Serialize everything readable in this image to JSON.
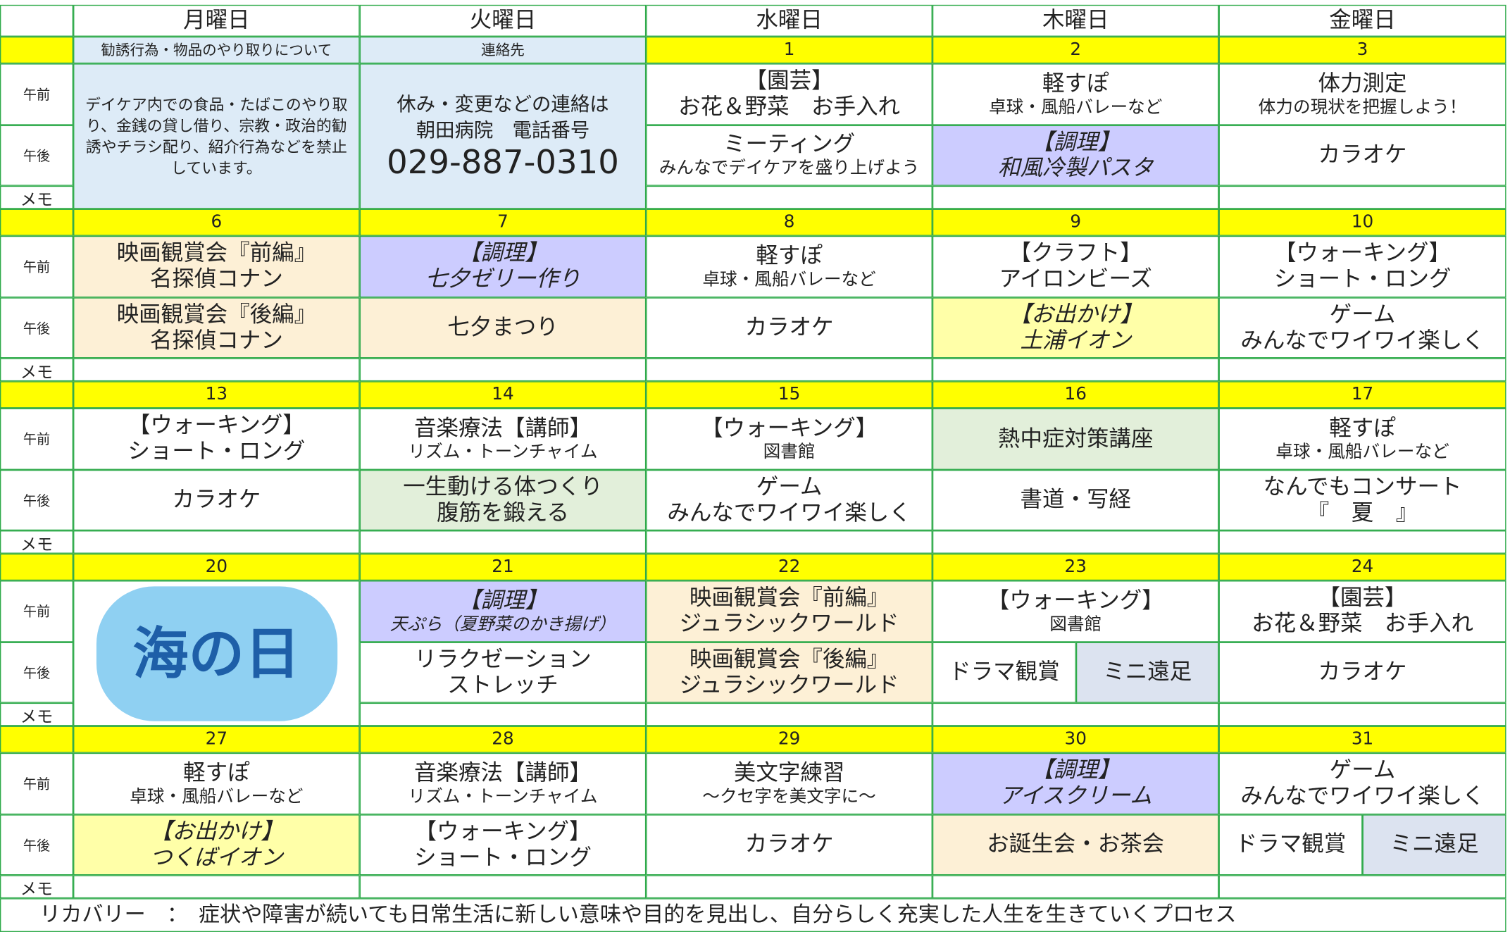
{
  "header": {
    "days": [
      "月曜日",
      "火曜日",
      "水曜日",
      "木曜日",
      "金曜日"
    ]
  },
  "row_labels": {
    "am": "午前",
    "pm": "午後",
    "memo": "メモ"
  },
  "notice": {
    "title": "勧誘行為・物品のやり取りについて",
    "text": "デイケア内での食品・たばこのやり取り、金銭の貸し借り、宗教・政治的勧誘やチラシ配り、紹介行為などを禁止しています。"
  },
  "contact": {
    "title": "連絡先",
    "lines": [
      "休み・変更などの連絡は",
      "朝田病院　電話番号",
      "029-887-0310"
    ]
  },
  "weeks": [
    {
      "dates": [
        null,
        null,
        1,
        2,
        3
      ],
      "am": [
        null,
        null,
        {
          "main": [
            "【園芸】",
            "お花＆野菜　お手入れ"
          ]
        },
        {
          "main": [
            "軽すぽ"
          ],
          "sub": "卓球・風船バレーなど"
        },
        {
          "main": [
            "体力測定"
          ],
          "sub": "体力の現状を把握しよう！"
        }
      ],
      "pm": [
        null,
        null,
        {
          "main": [
            "ミーティング"
          ],
          "sub": "みんなでデイケアを盛り上げよう"
        },
        {
          "main": [
            "【調理】",
            "和風冷製パスタ"
          ],
          "style": "cook"
        },
        {
          "main": [
            "カラオケ"
          ]
        }
      ]
    },
    {
      "dates": [
        6,
        7,
        8,
        9,
        10
      ],
      "am": [
        {
          "main": [
            "映画観賞会『前編』",
            "名探偵コナン"
          ],
          "style": "movie"
        },
        {
          "main": [
            "【調理】",
            "七夕ゼリー作り"
          ],
          "style": "cook"
        },
        {
          "main": [
            "軽すぽ"
          ],
          "sub": "卓球・風船バレーなど"
        },
        {
          "main": [
            "【クラフト】",
            "アイロンビーズ"
          ]
        },
        {
          "main": [
            "【ウォーキング】",
            "ショート・ロング"
          ]
        }
      ],
      "pm": [
        {
          "main": [
            "映画観賞会『後編』",
            "名探偵コナン"
          ],
          "style": "movie"
        },
        {
          "main": [
            "七夕まつり"
          ],
          "style": "movie"
        },
        {
          "main": [
            "カラオケ"
          ]
        },
        {
          "main": [
            "【お出かけ】",
            "土浦イオン"
          ],
          "style": "outing"
        },
        {
          "main": [
            "ゲーム",
            "みんなでワイワイ楽しく"
          ]
        }
      ]
    },
    {
      "dates": [
        13,
        14,
        15,
        16,
        17
      ],
      "am": [
        {
          "main": [
            "【ウォーキング】",
            "ショート・ロング"
          ]
        },
        {
          "main": [
            "音楽療法【講師】"
          ],
          "sub": "リズム・トーンチャイム"
        },
        {
          "main": [
            "【ウォーキング】"
          ],
          "sub": "図書館"
        },
        {
          "main": [
            "熱中症対策講座"
          ],
          "style": "green"
        },
        {
          "main": [
            "軽すぽ"
          ],
          "sub": "卓球・風船バレーなど"
        }
      ],
      "pm": [
        {
          "main": [
            "カラオケ"
          ]
        },
        {
          "main": [
            "一生動ける体つくり",
            "腹筋を鍛える"
          ],
          "style": "green"
        },
        {
          "main": [
            "ゲーム",
            "みんなでワイワイ楽しく"
          ]
        },
        {
          "main": [
            "書道・写経"
          ]
        },
        {
          "main": [
            "なんでもコンサート",
            "『　夏　』"
          ]
        }
      ]
    },
    {
      "dates": [
        20,
        21,
        22,
        23,
        24
      ],
      "holiday": {
        "day": 0,
        "label": "海の日"
      },
      "am": [
        null,
        {
          "main": [
            "【調理】"
          ],
          "sub": "天ぷら（夏野菜のかき揚げ）",
          "style": "cook"
        },
        {
          "main": [
            "映画観賞会『前編』",
            "ジュラシックワールド"
          ],
          "style": "movie"
        },
        {
          "main": [
            "【ウォーキング】"
          ],
          "sub": "図書館"
        },
        {
          "main": [
            "【園芸】",
            "お花＆野菜　お手入れ"
          ]
        }
      ],
      "pm": [
        null,
        {
          "main": [
            "リラクゼーション",
            "ストレッチ"
          ]
        },
        {
          "main": [
            "映画観賞会『後編』",
            "ジュラシックワールド"
          ],
          "style": "movie"
        },
        {
          "split": [
            {
              "main": [
                "ドラマ観賞"
              ]
            },
            {
              "main": [
                "ミニ遠足"
              ],
              "style": "lav"
            }
          ]
        },
        {
          "main": [
            "カラオケ"
          ]
        }
      ]
    },
    {
      "dates": [
        27,
        28,
        29,
        30,
        31
      ],
      "am": [
        {
          "main": [
            "軽すぽ"
          ],
          "sub": "卓球・風船バレーなど"
        },
        {
          "main": [
            "音楽療法【講師】"
          ],
          "sub": "リズム・トーンチャイム"
        },
        {
          "main": [
            "美文字練習"
          ],
          "sub": "～クセ字を美文字に～"
        },
        {
          "main": [
            "【調理】",
            "アイスクリーム"
          ],
          "style": "cook"
        },
        {
          "main": [
            "ゲーム",
            "みんなでワイワイ楽しく"
          ]
        }
      ],
      "pm": [
        {
          "main": [
            "【お出かけ】",
            "つくばイオン"
          ],
          "style": "outing"
        },
        {
          "main": [
            "【ウォーキング】",
            "ショート・ロング"
          ]
        },
        {
          "main": [
            "カラオケ"
          ]
        },
        {
          "main": [
            "お誕生会・お茶会"
          ],
          "style": "movie"
        },
        {
          "split": [
            {
              "main": [
                "ドラマ観賞"
              ]
            },
            {
              "main": [
                "ミニ遠足"
              ],
              "style": "lav"
            }
          ]
        }
      ]
    }
  ],
  "footer": "リカバリー　：　症状や障害が続いても日常生活に新しい意味や目的を見出し、自分らしく充実した人生を生きていくプロセス"
}
